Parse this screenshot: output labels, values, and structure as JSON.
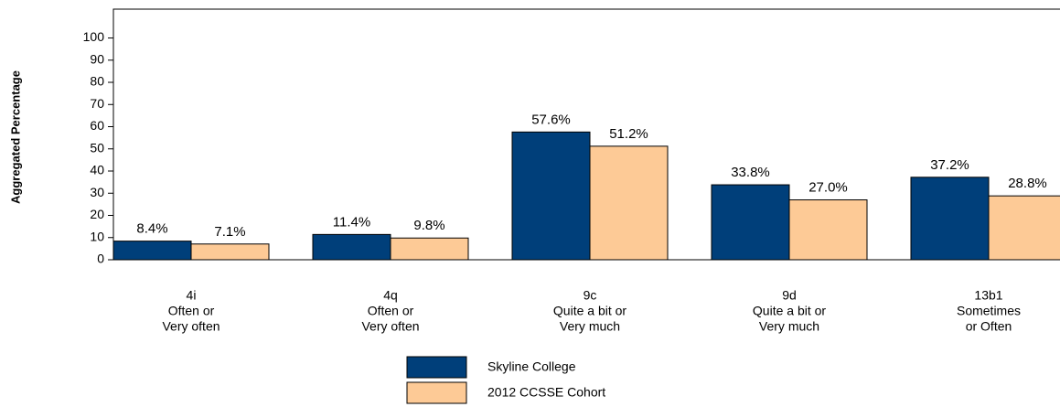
{
  "chart_data": {
    "type": "bar",
    "y_label": "Aggregated Percentage",
    "categories": [
      [
        "4i",
        "Often or",
        "Very often"
      ],
      [
        "4q",
        "Often or",
        "Very often"
      ],
      [
        "9c",
        "Quite a bit or",
        "Very much"
      ],
      [
        "9d",
        "Quite a bit or",
        "Very much"
      ],
      [
        "13b1",
        "Sometimes",
        "or Often"
      ]
    ],
    "series": [
      {
        "name": "Skyline College",
        "color": "#003f7a",
        "values": [
          8.4,
          11.4,
          57.6,
          33.8,
          37.2
        ],
        "value_labels": [
          "8.4%",
          "11.4%",
          "57.6%",
          "33.8%",
          "37.2%"
        ]
      },
      {
        "name": "2012 CCSSE Cohort",
        "color": "#fdca96",
        "values": [
          7.1,
          9.8,
          51.2,
          27.0,
          28.8
        ],
        "value_labels": [
          "7.1%",
          "9.8%",
          "51.2%",
          "27.0%",
          "28.8%"
        ]
      }
    ],
    "ylim": [
      0,
      113
    ],
    "yticks": [
      0,
      10,
      20,
      30,
      40,
      50,
      60,
      70,
      80,
      90,
      100
    ]
  }
}
